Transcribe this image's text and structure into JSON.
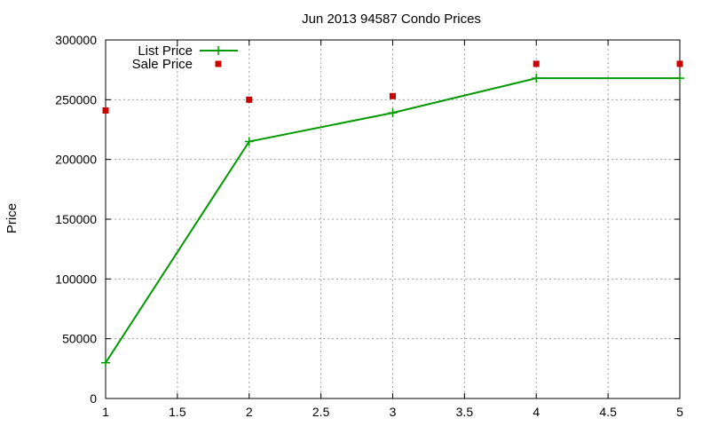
{
  "chart_data": {
    "type": "line",
    "title": "Jun 2013 94587 Condo Prices",
    "xlabel": "",
    "ylabel": "Price",
    "xlim": [
      1,
      5
    ],
    "ylim": [
      0,
      300000
    ],
    "x_ticks": [
      1,
      1.5,
      2,
      2.5,
      3,
      3.5,
      4,
      4.5,
      5
    ],
    "x_tick_labels": [
      "1",
      "1.5",
      "2",
      "2.5",
      "3",
      "3.5",
      "4",
      "4.5",
      "5"
    ],
    "y_ticks": [
      0,
      50000,
      100000,
      150000,
      200000,
      250000,
      300000
    ],
    "y_tick_labels": [
      "0",
      "50000",
      "100000",
      "150000",
      "200000",
      "250000",
      "300000"
    ],
    "grid": true,
    "legend_position": "top-left",
    "series": [
      {
        "name": "List Price",
        "style": "line+cross",
        "color": "#009900",
        "x": [
          1,
          2,
          3,
          4,
          5
        ],
        "y": [
          29900,
          215000,
          239000,
          268000,
          268000
        ]
      },
      {
        "name": "Sale Price",
        "style": "square-points",
        "color": "#cc0000",
        "x": [
          1,
          2,
          3,
          4,
          5
        ],
        "y": [
          241000,
          250000,
          253000,
          280000,
          280000
        ]
      }
    ]
  }
}
